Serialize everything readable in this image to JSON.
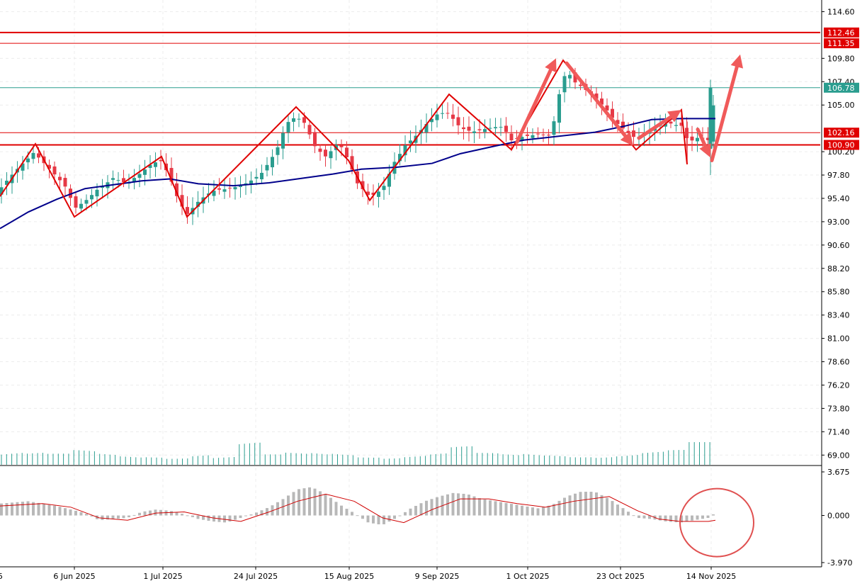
{
  "chart_data": {
    "type": "candlestick",
    "price_axis": {
      "ticks": [
        "114.60",
        "109.80",
        "107.40",
        "105.00",
        "100.20",
        "97.80",
        "95.40",
        "93.00",
        "90.60",
        "88.20",
        "85.80",
        "83.40",
        "81.00",
        "78.60",
        "76.20",
        "73.80",
        "71.40",
        "69.00"
      ],
      "range": [
        68.0,
        115.8
      ]
    },
    "time_axis": {
      "labels": [
        "6 Jun 2025",
        "1 Jul 2025",
        "24 Jul 2025",
        "15 Aug 2025",
        "9 Sep 2025",
        "1 Oct 2025",
        "23 Oct 2025",
        "14 Nov 2025"
      ]
    },
    "price_tags": [
      {
        "value": "112.46",
        "color": "#e00000"
      },
      {
        "value": "111.35",
        "color": "#e00000"
      },
      {
        "value": "106.78",
        "color": "#2a9d8f"
      },
      {
        "value": "102.16",
        "color": "#e00000"
      },
      {
        "value": "100.90",
        "color": "#e00000"
      }
    ],
    "horizontal_lines": [
      112.46,
      111.35,
      102.16,
      100.9
    ],
    "last_price": 106.78,
    "zigzag": [
      [
        0,
        95.6
      ],
      [
        50,
        101.0
      ],
      [
        105,
        93.5
      ],
      [
        228,
        99.7
      ],
      [
        264,
        93.5
      ],
      [
        418,
        104.8
      ],
      [
        492,
        99.3
      ],
      [
        522,
        95.2
      ],
      [
        634,
        106.1
      ],
      [
        722,
        100.4
      ],
      [
        795,
        109.6
      ],
      [
        898,
        100.4
      ],
      [
        962,
        104.5
      ],
      [
        970,
        98.9
      ]
    ],
    "arrows": [
      [
        [
          730,
          101.2
        ],
        [
          785,
          109.8
        ]
      ],
      [
        [
          800,
          109.3
        ],
        [
          894,
          100.8
        ]
      ],
      [
        [
          902,
          101.6
        ],
        [
          962,
          104.5
        ]
      ],
      [
        [
          985,
          102.5
        ],
        [
          1003,
          99.6
        ]
      ],
      [
        [
          1005,
          99.3
        ],
        [
          1045,
          110.2
        ]
      ]
    ],
    "ma": [
      [
        0,
        92.3
      ],
      [
        40,
        94.0
      ],
      [
        80,
        95.3
      ],
      [
        120,
        96.4
      ],
      [
        160,
        96.8
      ],
      [
        200,
        97.2
      ],
      [
        240,
        97.4
      ],
      [
        280,
        96.9
      ],
      [
        330,
        96.7
      ],
      [
        380,
        97.0
      ],
      [
        430,
        97.5
      ],
      [
        470,
        97.9
      ],
      [
        510,
        98.4
      ],
      [
        560,
        98.6
      ],
      [
        610,
        99.0
      ],
      [
        650,
        100.0
      ],
      [
        700,
        100.8
      ],
      [
        740,
        101.4
      ],
      [
        790,
        101.8
      ],
      [
        840,
        102.2
      ],
      [
        880,
        102.8
      ],
      [
        920,
        103.5
      ],
      [
        960,
        103.6
      ],
      [
        1010,
        103.6
      ]
    ],
    "candles_anchor": [
      [
        0,
        96.0
      ],
      [
        15,
        97.5
      ],
      [
        30,
        99.0
      ],
      [
        48,
        100.5
      ],
      [
        65,
        99.0
      ],
      [
        80,
        97.5
      ],
      [
        95,
        96.0
      ],
      [
        105,
        94.0
      ],
      [
        120,
        95.0
      ],
      [
        140,
        96.8
      ],
      [
        160,
        97.8
      ],
      [
        180,
        96.8
      ],
      [
        200,
        97.7
      ],
      [
        215,
        98.8
      ],
      [
        228,
        99.3
      ],
      [
        240,
        97.8
      ],
      [
        252,
        95.5
      ],
      [
        264,
        94.0
      ],
      [
        280,
        95.0
      ],
      [
        300,
        95.8
      ],
      [
        320,
        96.2
      ],
      [
        345,
        97.2
      ],
      [
        370,
        98.2
      ],
      [
        390,
        100.0
      ],
      [
        405,
        102.8
      ],
      [
        418,
        103.6
      ],
      [
        430,
        103.2
      ],
      [
        445,
        101.0
      ],
      [
        460,
        100.0
      ],
      [
        478,
        101.2
      ],
      [
        492,
        99.0
      ],
      [
        505,
        96.5
      ],
      [
        522,
        95.4
      ],
      [
        540,
        96.6
      ],
      [
        556,
        99.4
      ],
      [
        572,
        101.0
      ],
      [
        590,
        101.8
      ],
      [
        606,
        103.0
      ],
      [
        620,
        104.0
      ],
      [
        634,
        104.2
      ],
      [
        650,
        103.0
      ],
      [
        668,
        102.5
      ],
      [
        690,
        102.4
      ],
      [
        710,
        102.4
      ],
      [
        722,
        101.2
      ],
      [
        740,
        102.0
      ],
      [
        760,
        102.4
      ],
      [
        778,
        101.9
      ],
      [
        792,
        106.8
      ],
      [
        800,
        108.2
      ],
      [
        812,
        107.0
      ],
      [
        826,
        106.5
      ],
      [
        840,
        106.0
      ],
      [
        855,
        105.0
      ],
      [
        870,
        103.4
      ],
      [
        885,
        102.2
      ],
      [
        898,
        101.2
      ],
      [
        915,
        102.0
      ],
      [
        930,
        102.9
      ],
      [
        945,
        103.4
      ],
      [
        962,
        103.2
      ],
      [
        972,
        101.4
      ],
      [
        986,
        101.6
      ],
      [
        996,
        101.2
      ],
      [
        1002,
        101.0
      ],
      [
        1010,
        106.78
      ]
    ],
    "volume": {
      "values": [
        0.55,
        0.5,
        0.45,
        0.6,
        0.5,
        0.45,
        0.48,
        0.4,
        0.52,
        0.35,
        0.9,
        0.42,
        0.5,
        0.55,
        0.6,
        0.48,
        0.4,
        0.45,
        0.5,
        0.75,
        0.48,
        0.45,
        0.52,
        0.55,
        0.5,
        0.45,
        0.48,
        0.55,
        0.6,
        1.0
      ]
    },
    "macd": {
      "axis_ticks": [
        "3.675",
        "0.000",
        "-3.970"
      ],
      "range": [
        -3.97,
        3.675
      ],
      "histogram": [
        [
          0,
          1.0
        ],
        [
          20,
          1.1
        ],
        [
          40,
          1.2
        ],
        [
          60,
          1.0
        ],
        [
          80,
          0.8
        ],
        [
          100,
          0.5
        ],
        [
          120,
          0.2
        ],
        [
          140,
          -0.4
        ],
        [
          160,
          -0.3
        ],
        [
          180,
          -0.2
        ],
        [
          200,
          0.3
        ],
        [
          220,
          0.5
        ],
        [
          240,
          0.4
        ],
        [
          260,
          0.1
        ],
        [
          280,
          -0.3
        ],
        [
          300,
          -0.5
        ],
        [
          320,
          -0.6
        ],
        [
          340,
          -0.2
        ],
        [
          360,
          0.2
        ],
        [
          380,
          0.7
        ],
        [
          400,
          1.4
        ],
        [
          420,
          2.2
        ],
        [
          440,
          2.4
        ],
        [
          460,
          1.8
        ],
        [
          480,
          0.9
        ],
        [
          500,
          0.2
        ],
        [
          520,
          -0.6
        ],
        [
          540,
          -0.8
        ],
        [
          560,
          -0.2
        ],
        [
          580,
          0.6
        ],
        [
          600,
          1.2
        ],
        [
          620,
          1.6
        ],
        [
          640,
          1.9
        ],
        [
          660,
          1.8
        ],
        [
          680,
          1.4
        ],
        [
          700,
          1.2
        ],
        [
          720,
          1.0
        ],
        [
          740,
          0.8
        ],
        [
          760,
          0.6
        ],
        [
          780,
          0.9
        ],
        [
          800,
          1.6
        ],
        [
          820,
          2.0
        ],
        [
          840,
          2.0
        ],
        [
          860,
          1.4
        ],
        [
          880,
          0.6
        ],
        [
          900,
          -0.2
        ],
        [
          920,
          -0.3
        ],
        [
          940,
          -0.5
        ],
        [
          960,
          -0.6
        ],
        [
          980,
          -0.4
        ],
        [
          1000,
          -0.2
        ],
        [
          1012,
          0.3
        ]
      ],
      "signal": [
        [
          0,
          0.8
        ],
        [
          60,
          1.0
        ],
        [
          100,
          0.7
        ],
        [
          140,
          -0.2
        ],
        [
          180,
          -0.4
        ],
        [
          220,
          0.2
        ],
        [
          260,
          0.3
        ],
        [
          300,
          -0.2
        ],
        [
          340,
          -0.5
        ],
        [
          380,
          0.3
        ],
        [
          420,
          1.2
        ],
        [
          460,
          1.8
        ],
        [
          500,
          1.2
        ],
        [
          540,
          -0.2
        ],
        [
          570,
          -0.6
        ],
        [
          610,
          0.5
        ],
        [
          650,
          1.4
        ],
        [
          690,
          1.4
        ],
        [
          730,
          1.0
        ],
        [
          770,
          0.7
        ],
        [
          810,
          1.2
        ],
        [
          860,
          1.6
        ],
        [
          900,
          0.4
        ],
        [
          930,
          -0.3
        ],
        [
          960,
          -0.5
        ],
        [
          1000,
          -0.5
        ],
        [
          1010,
          -0.4
        ]
      ]
    },
    "highlight_circle": {
      "x": 1012,
      "y": -0.6
    }
  },
  "colors": {
    "up": "#2a9d8f",
    "down": "#e63946",
    "ma": "#00008b",
    "zigzag": "#e00000",
    "arrow": "#f05a5a",
    "hline": "#e00000",
    "last": "#2a9d8f",
    "grid": "#ececec",
    "volume": "#2a9d8f",
    "macd_hist": "#b8b8b8",
    "macd_signal": "#d00000",
    "circle": "#e05050"
  }
}
